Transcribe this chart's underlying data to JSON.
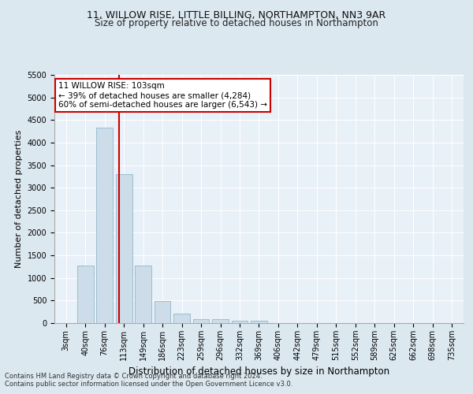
{
  "title1": "11, WILLOW RISE, LITTLE BILLING, NORTHAMPTON, NN3 9AR",
  "title2": "Size of property relative to detached houses in Northampton",
  "xlabel": "Distribution of detached houses by size in Northampton",
  "ylabel": "Number of detached properties",
  "categories": [
    "3sqm",
    "40sqm",
    "76sqm",
    "113sqm",
    "149sqm",
    "186sqm",
    "223sqm",
    "259sqm",
    "296sqm",
    "332sqm",
    "369sqm",
    "406sqm",
    "442sqm",
    "479sqm",
    "515sqm",
    "552sqm",
    "589sqm",
    "625sqm",
    "662sqm",
    "698sqm",
    "735sqm"
  ],
  "values": [
    0,
    1270,
    4330,
    3300,
    1280,
    490,
    210,
    90,
    80,
    55,
    55,
    0,
    0,
    0,
    0,
    0,
    0,
    0,
    0,
    0,
    0
  ],
  "bar_color": "#ccdce8",
  "bar_edgecolor": "#92b8cc",
  "vline_x": 2.73,
  "vline_color": "#cc0000",
  "ylim": [
    0,
    5500
  ],
  "yticks": [
    0,
    500,
    1000,
    1500,
    2000,
    2500,
    3000,
    3500,
    4000,
    4500,
    5000,
    5500
  ],
  "annotation_text": "11 WILLOW RISE: 103sqm\n← 39% of detached houses are smaller (4,284)\n60% of semi-detached houses are larger (6,543) →",
  "annotation_box_color": "#ffffff",
  "annotation_box_edgecolor": "#cc0000",
  "footer1": "Contains HM Land Registry data © Crown copyright and database right 2024.",
  "footer2": "Contains public sector information licensed under the Open Government Licence v3.0.",
  "bg_color": "#dce8f0",
  "plot_bg_color": "#e8f0f8",
  "grid_color": "#ffffff",
  "title1_fontsize": 9,
  "title2_fontsize": 8.5,
  "axis_label_fontsize": 8,
  "tick_fontsize": 7,
  "footer_fontsize": 6
}
